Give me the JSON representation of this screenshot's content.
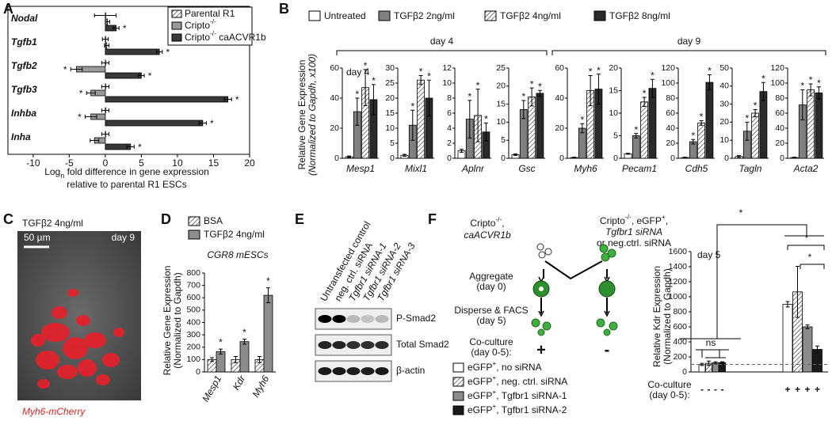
{
  "panel_labels": [
    "A",
    "B",
    "C",
    "D",
    "E",
    "F"
  ],
  "chart_data": [
    {
      "type": "bar",
      "orientation": "horizontal",
      "categories": [
        "Nodal",
        "Tgfb1",
        "Tgfb2",
        "Tgfb3",
        "Inhba",
        "Inha"
      ],
      "series": [
        {
          "name": "Parental R1",
          "color": "#ffffff",
          "pattern": "hatch",
          "values": [
            0,
            0,
            0,
            0,
            0,
            0
          ],
          "errors": [
            1.5,
            0.4,
            0.5,
            0.5,
            0.5,
            0.5
          ]
        },
        {
          "name": "Cripto-/-",
          "color": "#9a9a9a",
          "values": [
            0.3,
            0.2,
            -4,
            -2,
            -2,
            -1.5
          ],
          "errors": [
            0.3,
            0.3,
            0.8,
            0.6,
            0.8,
            0.6
          ],
          "significance": [
            null,
            null,
            "*",
            "*",
            "*",
            null
          ]
        },
        {
          "name": "Cripto-/- caACVR1b",
          "color": "#3a3a3a",
          "values": [
            1.5,
            7.5,
            5,
            17,
            13.5,
            3.5
          ],
          "errors": [
            0.4,
            0.4,
            0.4,
            0.5,
            0.5,
            0.5
          ],
          "significance": [
            "*",
            "*",
            "*",
            "*",
            "*",
            "*"
          ]
        }
      ],
      "xlim": [
        -13.5,
        20
      ],
      "xticks": [
        -10,
        -5,
        0,
        5,
        10,
        15,
        20
      ],
      "xlabel": {
        "pre": "Log",
        "sub": "n",
        "post": " fold difference in gene expression",
        "line2": "relative to parental R1 ESCs"
      }
    },
    {
      "type": "bar",
      "ylabel": [
        "Relative Gene Expression",
        "(Normalized to Gapdh, x100)"
      ],
      "series": [
        {
          "name": "Untreated",
          "color": "#ffffff"
        },
        {
          "name": "TGFβ2 2ng/ml",
          "color": "#808080"
        },
        {
          "name": "TGFβ2 4ng/ml",
          "color": "#ffffff",
          "pattern": "hatch"
        },
        {
          "name": "TGFβ2 8ng/ml",
          "color": "#2a2a2a"
        }
      ],
      "groups": [
        "day 4",
        "day 9"
      ],
      "inset_label": "day 4",
      "panels": [
        {
          "category": "Mesp1",
          "ylim": [
            0,
            60
          ],
          "yticks": [
            0,
            20,
            40,
            60
          ],
          "values": [
            1,
            31,
            47,
            39
          ],
          "errors": [
            0.5,
            9,
            12,
            10
          ],
          "significance": [
            null,
            "*",
            "*",
            "*"
          ]
        },
        {
          "category": "Mixl1",
          "ylim": [
            0,
            30
          ],
          "yticks": [
            0,
            5,
            10,
            15,
            20,
            25,
            30
          ],
          "values": [
            1,
            11,
            26,
            20
          ],
          "errors": [
            0.3,
            5,
            1.5,
            6
          ],
          "significance": [
            null,
            "*",
            "*",
            "*"
          ]
        },
        {
          "category": "Aplnr",
          "ylim": [
            0,
            12
          ],
          "yticks": [
            0,
            2,
            4,
            6,
            8,
            10,
            12
          ],
          "values": [
            1,
            5.2,
            5.7,
            3.5
          ],
          "errors": [
            0.2,
            2.5,
            3.5,
            1.2
          ],
          "significance": [
            null,
            "*",
            "*",
            "*"
          ]
        },
        {
          "category": "Gsc",
          "ylim": [
            0,
            25
          ],
          "yticks": [
            0,
            5,
            10,
            15,
            20,
            25
          ],
          "values": [
            1,
            13.5,
            17,
            18
          ],
          "errors": [
            0.2,
            2.5,
            2.5,
            0.8
          ],
          "significance": [
            null,
            "*",
            "*",
            "*"
          ]
        },
        {
          "category": "Myh6",
          "ylim": [
            0,
            60
          ],
          "yticks": [
            0,
            20,
            40,
            60
          ],
          "values": [
            0.5,
            20,
            45,
            46
          ],
          "errors": [
            0.2,
            3,
            10,
            10
          ],
          "significance": [
            null,
            "*",
            "*",
            "*"
          ]
        },
        {
          "category": "Pecam1",
          "ylim": [
            0,
            20
          ],
          "yticks": [
            0,
            5,
            10,
            15,
            20
          ],
          "values": [
            1,
            5,
            12.5,
            15.5
          ],
          "errors": [
            0.1,
            0.5,
            1,
            2
          ],
          "significance": [
            null,
            "*",
            "*",
            "*"
          ]
        },
        {
          "category": "Cdh5",
          "ylim": [
            0,
            120
          ],
          "yticks": [
            0,
            20,
            40,
            60,
            80,
            100,
            120
          ],
          "values": [
            1,
            22,
            47,
            101
          ],
          "errors": [
            0.5,
            3,
            3,
            10
          ],
          "significance": [
            null,
            "*",
            "*",
            "*"
          ]
        },
        {
          "category": "Tagln",
          "ylim": [
            0,
            50
          ],
          "yticks": [
            0,
            10,
            20,
            30,
            40,
            50
          ],
          "values": [
            1,
            15,
            25,
            37
          ],
          "errors": [
            0.5,
            5,
            2,
            5
          ],
          "significance": [
            null,
            "*",
            "*",
            "*"
          ]
        },
        {
          "category": "Acta2",
          "ylim": [
            0,
            120
          ],
          "yticks": [
            0,
            20,
            40,
            60,
            80,
            100,
            120
          ],
          "values": [
            1,
            71,
            91,
            87
          ],
          "errors": [
            0.5,
            20,
            8,
            8
          ],
          "significance": [
            null,
            "*",
            "*",
            "*"
          ]
        }
      ]
    },
    {
      "type": "bar",
      "subtitle": "CGR8 mESCs",
      "ylabel": [
        "Relative Gene Expression",
        "(Normalized to Gapdh)"
      ],
      "categories": [
        "Mesp1",
        "Kdr",
        "Myh6"
      ],
      "series": [
        {
          "name": "BSA",
          "color": "#ffffff",
          "pattern": "hatch",
          "values": [
            100,
            100,
            100
          ],
          "errors": [
            15,
            25,
            25
          ]
        },
        {
          "name": "TGFβ2 4ng/ml",
          "color": "#8c8c8c",
          "values": [
            165,
            245,
            620
          ],
          "errors": [
            20,
            20,
            60
          ],
          "significance": [
            "*",
            "*",
            "*"
          ]
        }
      ],
      "ylim": [
        0,
        800
      ],
      "yticks": [
        0,
        100,
        200,
        300,
        400,
        500,
        600,
        700,
        800
      ]
    },
    {
      "type": "bar",
      "title": "day 5",
      "ylabel": [
        "Relative Kdr Expression",
        "(Normalized to Gapdh)"
      ],
      "categories": [
        "-",
        "+"
      ],
      "xlabel": [
        "Co-culture",
        "(day 0-5):"
      ],
      "series": [
        {
          "name": "eGFP+, no siRNA",
          "color": "#ffffff",
          "values": [
            100,
            900
          ],
          "errors": [
            15,
            35
          ]
        },
        {
          "name": "eGFP+, neg. ctrl. siRNA",
          "color": "#ffffff",
          "pattern": "hatch",
          "values": [
            115,
            1065
          ],
          "errors": [
            30,
            340
          ]
        },
        {
          "name": "eGFP+, Tgfbr1 siRNA-1",
          "color": "#8c8c8c",
          "values": [
            120,
            600
          ],
          "errors": [
            15,
            25
          ]
        },
        {
          "name": "eGFP+, Tgfbr1 siRNA-2",
          "color": "#1a1a1a",
          "values": [
            125,
            300
          ],
          "errors": [
            10,
            45
          ]
        }
      ],
      "ylim": [
        0,
        1600
      ],
      "yticks": [
        0,
        200,
        400,
        600,
        800,
        1000,
        1200,
        1400,
        1600
      ],
      "reference_line": 100,
      "annotations": [
        "*",
        "*",
        "*",
        "ns"
      ]
    }
  ],
  "panel_c": {
    "treatment": "TGFβ2 4ng/ml",
    "scale": "50 µm",
    "day": "day 9",
    "reporter": "Myh6-mCherry"
  },
  "panel_e": {
    "lanes": [
      "Untransfected control",
      "neg. ctrl. siRNA",
      "Tgfbr1 siRNA-1",
      "Tgfbr1 siRNA-2",
      "Tgfbr1 siRNA-3"
    ],
    "rows": [
      "P-Smad2",
      "Total Smad2",
      "β-actin"
    ]
  },
  "panel_f": {
    "left_cells": [
      "Cripto-/-,",
      "caACVR1b"
    ],
    "right_cells": [
      "Cripto-/-, eGFP+,",
      "Tgfbr1 siRNA",
      "or neg.ctrl. siRNA"
    ],
    "steps": [
      [
        "Aggregate",
        "(day 0)"
      ],
      [
        "Disperse & FACS",
        "(day 5)"
      ],
      [
        "Co-culture",
        "(day 0-5):"
      ]
    ],
    "coculture_left": "+",
    "coculture_right": "-"
  }
}
